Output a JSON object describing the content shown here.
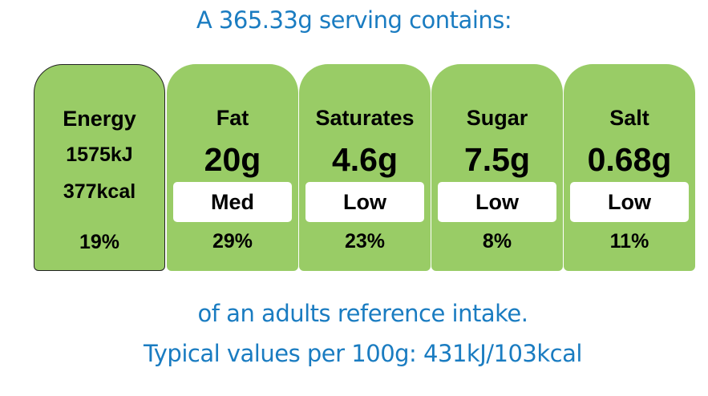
{
  "header": "A 365.33g serving contains:",
  "energy": {
    "label": "Energy",
    "kj": "1575kJ",
    "kcal": "377kcal",
    "percent": "19%"
  },
  "nutrients": [
    {
      "name": "Fat",
      "amount": "20g",
      "level": "Med",
      "percent": "29%"
    },
    {
      "name": "Saturates",
      "amount": "4.6g",
      "level": "Low",
      "percent": "23%"
    },
    {
      "name": "Sugar",
      "amount": "7.5g",
      "level": "Low",
      "percent": "8%"
    },
    {
      "name": "Salt",
      "amount": "0.68g",
      "level": "Low",
      "percent": "11%"
    }
  ],
  "footer": {
    "line1": "of an adults reference intake.",
    "line2": "Typical values per 100g: 431kJ/103kcal"
  },
  "colors": {
    "panel": "#99cc66",
    "text_blue": "#1a7cc1",
    "level_bg": "#ffffff"
  }
}
